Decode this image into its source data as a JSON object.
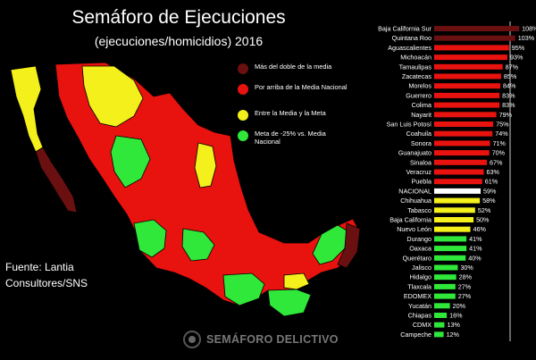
{
  "header": {
    "title": "Semáforo de Ejecuciones",
    "subtitle": "(ejecuciones/homicidios) 2016"
  },
  "legend": {
    "items": [
      {
        "label": "Más del doble de la media",
        "color": "#6b1010"
      },
      {
        "label": "Por arriba de la Media Nacional",
        "color": "#e8120e"
      },
      {
        "label": "Entre la Media y la Meta",
        "color": "#f3f01b"
      },
      {
        "label": "Meta de -25% vs. Media Nacional",
        "color": "#2fe83a"
      }
    ]
  },
  "source": {
    "line1": "Fuente: Lantia",
    "line2": "Consultores/SNS"
  },
  "logo": {
    "text": "SEMÁFORO DELICTIVO",
    "icon": "semaforo-logo-icon"
  },
  "colors": {
    "dark_red": "#6b1010",
    "red": "#e8120e",
    "yellow": "#f3f01b",
    "green": "#2fe83a",
    "national": "#ffffff",
    "map_background": "#000000"
  },
  "chart_data": {
    "type": "bar",
    "orientation": "horizontal",
    "categories": [
      "Baja California Sur",
      "Quintana Roo",
      "Aguascalientes",
      "Michoacán",
      "Tamaulipas",
      "Zacatecas",
      "Morelos",
      "Guerrero",
      "Colima",
      "Nayarit",
      "San Luis Potosí",
      "Coahuila",
      "Sonora",
      "Guanajuato",
      "Sinaloa",
      "Veracruz",
      "Puebla",
      "NACIONAL",
      "Chihuahua",
      "Tabasco",
      "Baja California",
      "Nuevo León",
      "Durango",
      "Oaxaca",
      "Querétaro",
      "Jalisco",
      "Hidalgo",
      "Tlaxcala",
      "EDOMEX",
      "Yucatán",
      "Chiapas",
      "CDMX",
      "Campeche"
    ],
    "values": [
      108,
      103,
      95,
      93,
      87,
      85,
      84,
      83,
      83,
      79,
      75,
      74,
      71,
      70,
      67,
      63,
      61,
      59,
      58,
      52,
      50,
      46,
      41,
      41,
      40,
      30,
      28,
      27,
      27,
      20,
      16,
      13,
      12
    ],
    "value_labels": [
      "108%",
      "103%",
      "95%",
      "93%",
      "87%",
      "85%",
      "84%",
      "83%",
      "83%",
      "79%",
      "75%",
      "74%",
      "71%",
      "70%",
      "67%",
      "63%",
      "61%",
      "59%",
      "58%",
      "52%",
      "50%",
      "46%",
      "41%",
      "41%",
      "40%",
      "30%",
      "28%",
      "27%",
      "27%",
      "20%",
      "16%",
      "13%",
      "12%"
    ],
    "bar_colors": [
      "#6b1010",
      "#6b1010",
      "#e8120e",
      "#e8120e",
      "#e8120e",
      "#e8120e",
      "#e8120e",
      "#e8120e",
      "#e8120e",
      "#e8120e",
      "#e8120e",
      "#e8120e",
      "#e8120e",
      "#e8120e",
      "#e8120e",
      "#e8120e",
      "#e8120e",
      "#ffffff",
      "#f3f01b",
      "#f3f01b",
      "#f3f01b",
      "#f3f01b",
      "#2fe83a",
      "#2fe83a",
      "#2fe83a",
      "#2fe83a",
      "#2fe83a",
      "#2fe83a",
      "#2fe83a",
      "#2fe83a",
      "#2fe83a",
      "#2fe83a",
      "#2fe83a"
    ],
    "xlim": [
      0,
      118
    ],
    "grid": false,
    "legend": "none"
  }
}
